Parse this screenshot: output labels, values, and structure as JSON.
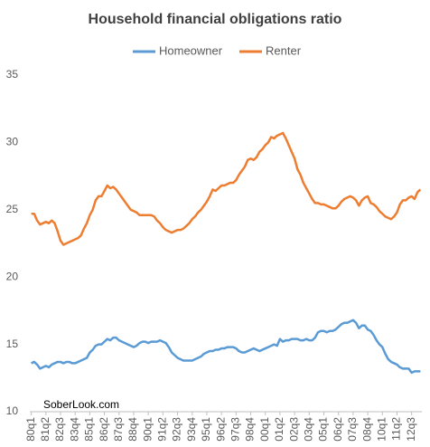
{
  "chart_data": {
    "type": "line",
    "title": "Household financial obligations ratio",
    "annotation": "SoberLook.com",
    "legend": "top",
    "grid": false,
    "ylim": [
      10,
      35
    ],
    "yticks": [
      10,
      15,
      20,
      25,
      30,
      35
    ],
    "categories": [
      "80q1",
      null,
      null,
      null,
      null,
      "81q2",
      null,
      null,
      null,
      null,
      "82q3",
      null,
      null,
      null,
      null,
      "83q4",
      null,
      null,
      null,
      null,
      "85q1",
      null,
      null,
      null,
      null,
      "86q2",
      null,
      null,
      null,
      null,
      "87q3",
      null,
      null,
      null,
      null,
      "88q4",
      null,
      null,
      null,
      null,
      "90q1",
      null,
      null,
      null,
      null,
      "91q2",
      null,
      null,
      null,
      null,
      "92q3",
      null,
      null,
      null,
      null,
      "93q4",
      null,
      null,
      null,
      null,
      "95q1",
      null,
      null,
      null,
      null,
      "96q2",
      null,
      null,
      null,
      null,
      "97q3",
      null,
      null,
      null,
      null,
      "98q4",
      null,
      null,
      null,
      null,
      "00q1",
      null,
      null,
      null,
      null,
      "01q2",
      null,
      null,
      null,
      null,
      "02q3",
      null,
      null,
      null,
      null,
      "03q4",
      null,
      null,
      null,
      null,
      "05q1",
      null,
      null,
      null,
      null,
      "06q2",
      null,
      null,
      null,
      null,
      "07q3",
      null,
      null,
      null,
      null,
      "08q4",
      null,
      null,
      null,
      null,
      "10q1",
      null,
      null,
      null,
      null,
      "11q2",
      null,
      null,
      null,
      null,
      "12q3",
      null,
      null,
      null
    ],
    "series": [
      {
        "name": "Homeowner",
        "color": "#5b9bd5",
        "values": [
          13.6,
          13.7,
          13.5,
          13.2,
          13.3,
          13.4,
          13.3,
          13.5,
          13.6,
          13.7,
          13.7,
          13.6,
          13.7,
          13.7,
          13.6,
          13.6,
          13.7,
          13.8,
          13.9,
          14.0,
          14.4,
          14.6,
          14.9,
          15.0,
          15.0,
          15.2,
          15.4,
          15.3,
          15.5,
          15.5,
          15.3,
          15.2,
          15.1,
          15.0,
          14.9,
          14.8,
          14.9,
          15.1,
          15.2,
          15.2,
          15.1,
          15.2,
          15.2,
          15.2,
          15.3,
          15.2,
          15.1,
          14.8,
          14.4,
          14.2,
          14.0,
          13.9,
          13.8,
          13.8,
          13.8,
          13.8,
          13.9,
          14.0,
          14.1,
          14.3,
          14.4,
          14.5,
          14.5,
          14.6,
          14.6,
          14.7,
          14.7,
          14.8,
          14.8,
          14.8,
          14.7,
          14.5,
          14.4,
          14.4,
          14.5,
          14.6,
          14.7,
          14.6,
          14.5,
          14.6,
          14.7,
          14.8,
          14.9,
          15.0,
          14.9,
          15.4,
          15.2,
          15.3,
          15.3,
          15.4,
          15.4,
          15.4,
          15.3,
          15.3,
          15.4,
          15.3,
          15.3,
          15.5,
          15.9,
          16.0,
          16.0,
          15.9,
          16.0,
          16.0,
          16.1,
          16.3,
          16.5,
          16.6,
          16.6,
          16.7,
          16.8,
          16.6,
          16.2,
          16.4,
          16.4,
          16.1,
          16.0,
          15.7,
          15.3,
          15.0,
          14.8,
          14.3,
          13.9,
          13.7,
          13.6,
          13.5,
          13.3,
          13.2,
          13.2,
          13.2,
          12.9,
          13.0,
          13.0,
          13.0
        ]
      },
      {
        "name": "Renter",
        "color": "#ed7d31",
        "values": [
          24.7,
          24.7,
          24.2,
          23.9,
          24.0,
          24.1,
          24.0,
          24.2,
          24.0,
          23.4,
          22.7,
          22.4,
          22.5,
          22.6,
          22.7,
          22.8,
          22.9,
          23.1,
          23.6,
          24.0,
          24.6,
          25.0,
          25.7,
          26.0,
          26.0,
          26.4,
          26.8,
          26.6,
          26.7,
          26.5,
          26.2,
          25.9,
          25.6,
          25.3,
          25.0,
          24.9,
          24.8,
          24.6,
          24.6,
          24.6,
          24.6,
          24.6,
          24.5,
          24.2,
          24.0,
          23.7,
          23.5,
          23.4,
          23.3,
          23.4,
          23.5,
          23.5,
          23.6,
          23.8,
          24.0,
          24.3,
          24.5,
          24.8,
          25.0,
          25.3,
          25.6,
          26.0,
          26.5,
          26.4,
          26.6,
          26.8,
          26.8,
          26.9,
          27.0,
          27.0,
          27.2,
          27.6,
          27.9,
          28.2,
          28.7,
          28.8,
          28.7,
          28.9,
          29.3,
          29.5,
          29.8,
          30.0,
          30.4,
          30.3,
          30.5,
          30.6,
          30.7,
          30.3,
          29.8,
          29.3,
          28.8,
          28.0,
          27.6,
          27.0,
          26.6,
          26.2,
          25.8,
          25.5,
          25.5,
          25.4,
          25.4,
          25.3,
          25.2,
          25.1,
          25.1,
          25.3,
          25.6,
          25.8,
          25.9,
          26.0,
          25.9,
          25.7,
          25.3,
          25.7,
          25.9,
          26.0,
          25.5,
          25.4,
          25.2,
          24.9,
          24.7,
          24.5,
          24.4,
          24.3,
          24.5,
          24.8,
          25.4,
          25.7,
          25.7,
          25.9,
          26.0,
          25.8,
          26.3,
          26.5
        ]
      }
    ]
  }
}
